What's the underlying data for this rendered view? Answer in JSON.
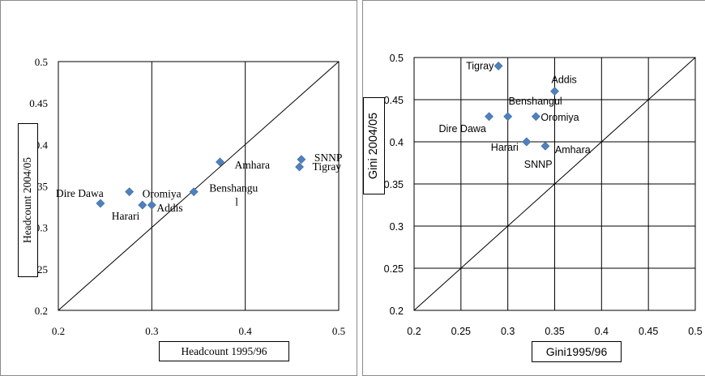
{
  "chart_data": [
    {
      "type": "scatter",
      "xlabel": "Headcount 1995/96",
      "ylabel": "Headcount 2004/05",
      "xlim": [
        0.2,
        0.5
      ],
      "ylim": [
        0.2,
        0.5
      ],
      "xticks": [
        "0.2",
        "0.3",
        "0.4",
        "0.5"
      ],
      "yticks": [
        "0.2",
        "0.25",
        "0.3",
        "0.35",
        "0.4",
        "0.45",
        "0.5"
      ],
      "grid": "vertical",
      "reference_line": "y = x",
      "marker_color": "#4f81bd",
      "points": [
        {
          "label": "Dire Dawa",
          "x": 0.245,
          "y": 0.329
        },
        {
          "label": "Harari",
          "x": 0.29,
          "y": 0.327
        },
        {
          "label": "Addis",
          "x": 0.3,
          "y": 0.327
        },
        {
          "label": "Oromiya",
          "x": 0.276,
          "y": 0.343
        },
        {
          "label": "Benshangul",
          "x": 0.345,
          "y": 0.343
        },
        {
          "label": "Amhara",
          "x": 0.373,
          "y": 0.379
        },
        {
          "label": "SNNP",
          "x": 0.46,
          "y": 0.382
        },
        {
          "label": "Tigray",
          "x": 0.458,
          "y": 0.373
        }
      ]
    },
    {
      "type": "scatter",
      "xlabel": "Gini1995/96",
      "ylabel": "Gini 2004/05",
      "xlim": [
        0.2,
        0.5
      ],
      "ylim": [
        0.2,
        0.5
      ],
      "xticks": [
        "0.2",
        "0.25",
        "0.3",
        "0.35",
        "0.4",
        "0.45",
        "0.5"
      ],
      "yticks": [
        "0.2",
        "0.25",
        "0.3",
        "0.35",
        "0.4",
        "0.45",
        "0.5"
      ],
      "grid": "both",
      "reference_line": "y = x",
      "marker_color": "#4f81bd",
      "points": [
        {
          "label": "Tigray",
          "x": 0.29,
          "y": 0.49
        },
        {
          "label": "Addis",
          "x": 0.35,
          "y": 0.46
        },
        {
          "label": "Dire Dawa",
          "x": 0.28,
          "y": 0.43
        },
        {
          "label": "Benshangul",
          "x": 0.3,
          "y": 0.43
        },
        {
          "label": "Oromiya",
          "x": 0.33,
          "y": 0.43
        },
        {
          "label": "Harari",
          "x": 0.32,
          "y": 0.4
        },
        {
          "label": "Amhara",
          "x": 0.34,
          "y": 0.395
        },
        {
          "label": "SNNP",
          "x": 0.32,
          "y": 0.4
        }
      ]
    }
  ]
}
